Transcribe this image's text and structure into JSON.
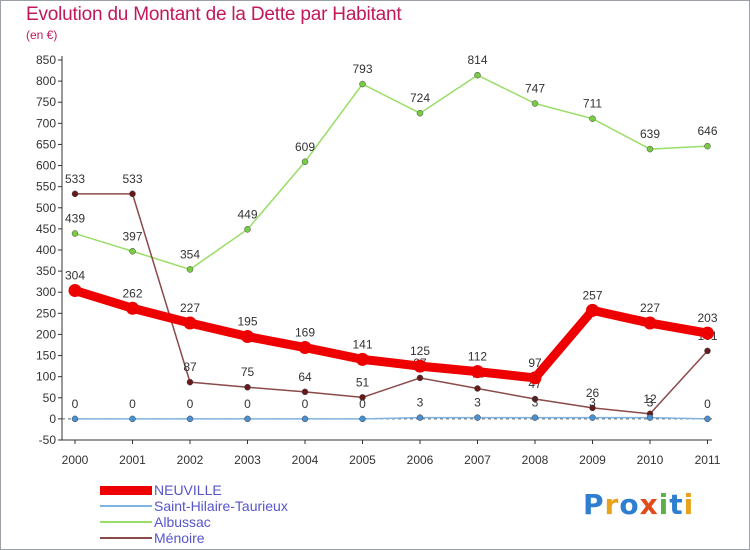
{
  "title": "Evolution du Montant de la Dette par Habitant",
  "unit": "(en €)",
  "logo": {
    "text": "Proxiti",
    "letters": [
      {
        "ch": "P",
        "color": "#2e7fd1"
      },
      {
        "ch": "r",
        "color": "#e8a21b"
      },
      {
        "ch": "o",
        "color": "#2e7fd1"
      },
      {
        "ch": "x",
        "color": "#e04b1a"
      },
      {
        "ch": "i",
        "color": "#5bb04a"
      },
      {
        "ch": "t",
        "color": "#2e7fd1"
      },
      {
        "ch": "i",
        "color": "#e8a21b"
      }
    ]
  },
  "chart_data": {
    "type": "line",
    "title": "Evolution du Montant de la Dette par Habitant",
    "ylabel": "(en €)",
    "xlabel": "",
    "x": [
      "2000",
      "2001",
      "2002",
      "2003",
      "2004",
      "2005",
      "2006",
      "2007",
      "2008",
      "2009",
      "2010",
      "2011"
    ],
    "ylim": [
      -50,
      850
    ],
    "yticks": [
      -50,
      0,
      50,
      100,
      150,
      200,
      250,
      300,
      350,
      400,
      450,
      500,
      550,
      600,
      650,
      700,
      750,
      800,
      850
    ],
    "grid": false,
    "legend_position": "bottom-left",
    "series": [
      {
        "name": "Albussac",
        "color": "#99dd66",
        "marker": "#77cc44",
        "width": 1.5,
        "values": [
          439,
          397,
          354,
          449,
          609,
          793,
          724,
          814,
          747,
          711,
          639,
          646
        ],
        "labels": [
          "439",
          "397",
          "354",
          "449",
          "609",
          "793",
          "724",
          "814",
          "747",
          "711",
          "639",
          "646"
        ]
      },
      {
        "name": "Ménoire",
        "color": "#8b4a4a",
        "marker": "#661a1a",
        "width": 1.5,
        "values": [
          533,
          533,
          87,
          75,
          64,
          51,
          97,
          72,
          47,
          26,
          12,
          161
        ],
        "labels": [
          "533",
          "533",
          "87",
          "75",
          "64",
          "51",
          "97",
          "72",
          "47",
          "26",
          "12",
          "161"
        ]
      },
      {
        "name": "Saint-Hilaire-Taurieux",
        "color": "#7fb3e0",
        "marker": "#4a90d0",
        "width": 1.5,
        "values": [
          0,
          0,
          0,
          0,
          0,
          0,
          3,
          3,
          3,
          3,
          3,
          0
        ],
        "labels": [
          "0",
          "0",
          "0",
          "0",
          "0",
          "0",
          "3",
          "3",
          "3",
          "3",
          "3",
          "0"
        ]
      },
      {
        "name": "NEUVILLE",
        "color": "#ee0000",
        "marker": "#ee0000",
        "width": 9,
        "values": [
          304,
          262,
          227,
          195,
          169,
          141,
          125,
          112,
          97,
          257,
          227,
          203
        ],
        "labels": [
          "304",
          "262",
          "227",
          "195",
          "169",
          "141",
          "125",
          "112",
          "97",
          "257",
          "227",
          "203"
        ]
      }
    ],
    "legend": [
      {
        "name": "NEUVILLE",
        "color": "#ee0000",
        "text_color": "#5555cc",
        "thickness": 9
      },
      {
        "name": "Saint-Hilaire-Taurieux",
        "color": "#7fb3e0",
        "text_color": "#5555cc",
        "thickness": 2
      },
      {
        "name": "Albussac",
        "color": "#99dd66",
        "text_color": "#5555cc",
        "thickness": 2
      },
      {
        "name": "Ménoire",
        "color": "#8b4a4a",
        "text_color": "#5555cc",
        "thickness": 2
      }
    ]
  }
}
